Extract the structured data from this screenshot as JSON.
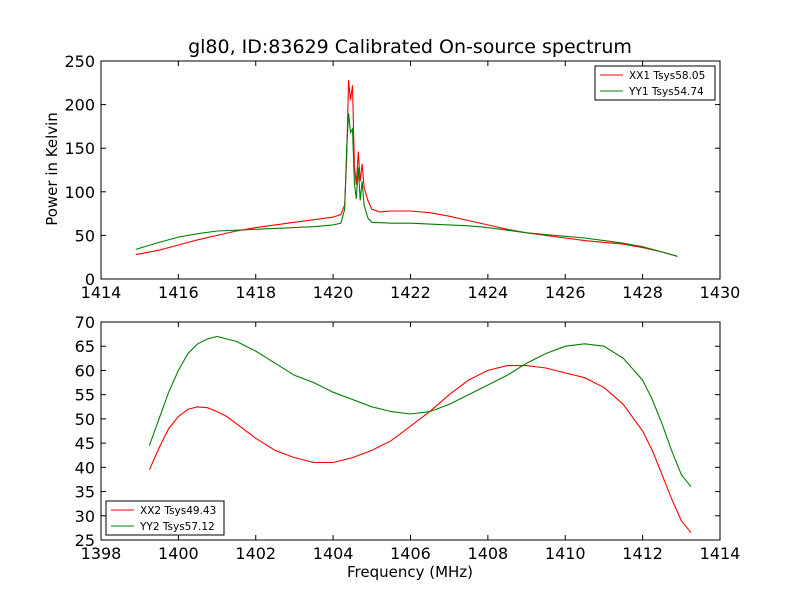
{
  "chart_data": [
    {
      "type": "line",
      "title": "gl80, ID:83629 Calibrated On-source spectrum",
      "xlabel": "",
      "ylabel": "Power in Kelvin",
      "xlim": [
        1414,
        1430
      ],
      "ylim": [
        0,
        250
      ],
      "xticks": [
        "1414",
        "1416",
        "1418",
        "1420",
        "1422",
        "1424",
        "1426",
        "1428",
        "1430"
      ],
      "yticks": [
        "0",
        "50",
        "100",
        "150",
        "200",
        "250"
      ],
      "legend_position": "top-right",
      "grid": false,
      "series": [
        {
          "name": "XX1 Tsys58.05",
          "color": "#ff0000",
          "points": [
            [
              1414.9,
              28
            ],
            [
              1415.5,
              33
            ],
            [
              1416,
              39
            ],
            [
              1416.5,
              45
            ],
            [
              1417,
              50
            ],
            [
              1417.5,
              55
            ],
            [
              1418,
              59
            ],
            [
              1418.5,
              62
            ],
            [
              1419,
              65
            ],
            [
              1419.5,
              68
            ],
            [
              1420,
              71
            ],
            [
              1420.2,
              74
            ],
            [
              1420.3,
              85
            ],
            [
              1420.35,
              140
            ],
            [
              1420.4,
              228
            ],
            [
              1420.45,
              205
            ],
            [
              1420.5,
              222
            ],
            [
              1420.55,
              130
            ],
            [
              1420.6,
              108
            ],
            [
              1420.65,
              146
            ],
            [
              1420.7,
              112
            ],
            [
              1420.75,
              132
            ],
            [
              1420.8,
              105
            ],
            [
              1420.9,
              90
            ],
            [
              1421,
              80
            ],
            [
              1421.2,
              77
            ],
            [
              1421.5,
              78
            ],
            [
              1422,
              78
            ],
            [
              1422.5,
              76
            ],
            [
              1423,
              72
            ],
            [
              1423.5,
              67
            ],
            [
              1424,
              62
            ],
            [
              1424.5,
              57
            ],
            [
              1425,
              53
            ],
            [
              1425.5,
              50
            ],
            [
              1426,
              47
            ],
            [
              1426.5,
              44
            ],
            [
              1427,
              42
            ],
            [
              1427.5,
              40
            ],
            [
              1428,
              36
            ],
            [
              1428.5,
              31
            ],
            [
              1428.9,
              26
            ]
          ]
        },
        {
          "name": "YY1 Tsys54.74",
          "color": "#008000",
          "points": [
            [
              1414.9,
              34
            ],
            [
              1415.5,
              42
            ],
            [
              1416,
              48
            ],
            [
              1416.5,
              52
            ],
            [
              1417,
              55
            ],
            [
              1417.5,
              56
            ],
            [
              1418,
              57
            ],
            [
              1418.5,
              58
            ],
            [
              1419,
              59
            ],
            [
              1419.5,
              60
            ],
            [
              1420,
              62
            ],
            [
              1420.2,
              64
            ],
            [
              1420.3,
              80
            ],
            [
              1420.35,
              150
            ],
            [
              1420.4,
              190
            ],
            [
              1420.45,
              168
            ],
            [
              1420.5,
              172
            ],
            [
              1420.55,
              110
            ],
            [
              1420.6,
              92
            ],
            [
              1420.65,
              128
            ],
            [
              1420.7,
              90
            ],
            [
              1420.75,
              112
            ],
            [
              1420.8,
              85
            ],
            [
              1420.9,
              70
            ],
            [
              1421,
              65
            ],
            [
              1421.5,
              64
            ],
            [
              1422,
              64
            ],
            [
              1422.5,
              63
            ],
            [
              1423,
              62
            ],
            [
              1423.5,
              61
            ],
            [
              1424,
              59
            ],
            [
              1424.5,
              56
            ],
            [
              1425,
              53
            ],
            [
              1425.5,
              51
            ],
            [
              1426,
              49
            ],
            [
              1426.5,
              47
            ],
            [
              1427,
              44
            ],
            [
              1427.5,
              41
            ],
            [
              1428,
              37
            ],
            [
              1428.5,
              31
            ],
            [
              1428.9,
              26
            ]
          ]
        }
      ]
    },
    {
      "type": "line",
      "title": "",
      "xlabel": "Frequency (MHz)",
      "ylabel": "",
      "xlim": [
        1398,
        1414
      ],
      "ylim": [
        25,
        70
      ],
      "xticks": [
        "1398",
        "1400",
        "1402",
        "1404",
        "1406",
        "1408",
        "1410",
        "1412",
        "1414"
      ],
      "yticks": [
        "25",
        "30",
        "35",
        "40",
        "45",
        "50",
        "55",
        "60",
        "65",
        "70"
      ],
      "legend_position": "bottom-left",
      "grid": false,
      "series": [
        {
          "name": "XX2 Tsys49.43",
          "color": "#ff0000",
          "points": [
            [
              1399.25,
              39.5
            ],
            [
              1399.5,
              44
            ],
            [
              1399.75,
              48
            ],
            [
              1400,
              50.5
            ],
            [
              1400.25,
              52
            ],
            [
              1400.5,
              52.5
            ],
            [
              1400.75,
              52.3
            ],
            [
              1401,
              51.5
            ],
            [
              1401.25,
              50.5
            ],
            [
              1401.5,
              49
            ],
            [
              1401.75,
              47.5
            ],
            [
              1402,
              46
            ],
            [
              1402.5,
              43.5
            ],
            [
              1403,
              42
            ],
            [
              1403.5,
              41
            ],
            [
              1404,
              41
            ],
            [
              1404.5,
              42
            ],
            [
              1405,
              43.5
            ],
            [
              1405.5,
              45.5
            ],
            [
              1406,
              48.5
            ],
            [
              1406.5,
              51.5
            ],
            [
              1407,
              55
            ],
            [
              1407.5,
              58
            ],
            [
              1408,
              60
            ],
            [
              1408.5,
              61
            ],
            [
              1409,
              61
            ],
            [
              1409.5,
              60.5
            ],
            [
              1410,
              59.5
            ],
            [
              1410.5,
              58.5
            ],
            [
              1411,
              56.5
            ],
            [
              1411.5,
              53
            ],
            [
              1412,
              47.5
            ],
            [
              1412.25,
              43.5
            ],
            [
              1412.5,
              38.5
            ],
            [
              1412.75,
              33.5
            ],
            [
              1413,
              29
            ],
            [
              1413.25,
              26.5
            ]
          ]
        },
        {
          "name": "YY2 Tsys57.12",
          "color": "#008000",
          "points": [
            [
              1399.25,
              44.5
            ],
            [
              1399.5,
              50
            ],
            [
              1399.75,
              55.5
            ],
            [
              1400,
              60
            ],
            [
              1400.25,
              63.5
            ],
            [
              1400.5,
              65.5
            ],
            [
              1400.75,
              66.5
            ],
            [
              1401,
              67
            ],
            [
              1401.25,
              66.5
            ],
            [
              1401.5,
              66
            ],
            [
              1402,
              64
            ],
            [
              1402.5,
              61.5
            ],
            [
              1403,
              59
            ],
            [
              1403.5,
              57.5
            ],
            [
              1404,
              55.5
            ],
            [
              1404.5,
              54
            ],
            [
              1405,
              52.5
            ],
            [
              1405.5,
              51.5
            ],
            [
              1406,
              51
            ],
            [
              1406.5,
              51.5
            ],
            [
              1407,
              53
            ],
            [
              1407.5,
              55
            ],
            [
              1408,
              57
            ],
            [
              1408.5,
              59
            ],
            [
              1409,
              61.5
            ],
            [
              1409.5,
              63.5
            ],
            [
              1410,
              65
            ],
            [
              1410.5,
              65.5
            ],
            [
              1411,
              65
            ],
            [
              1411.5,
              62.5
            ],
            [
              1412,
              58
            ],
            [
              1412.25,
              54
            ],
            [
              1412.5,
              49
            ],
            [
              1412.75,
              43.5
            ],
            [
              1413,
              38.5
            ],
            [
              1413.25,
              36
            ]
          ]
        }
      ]
    }
  ]
}
